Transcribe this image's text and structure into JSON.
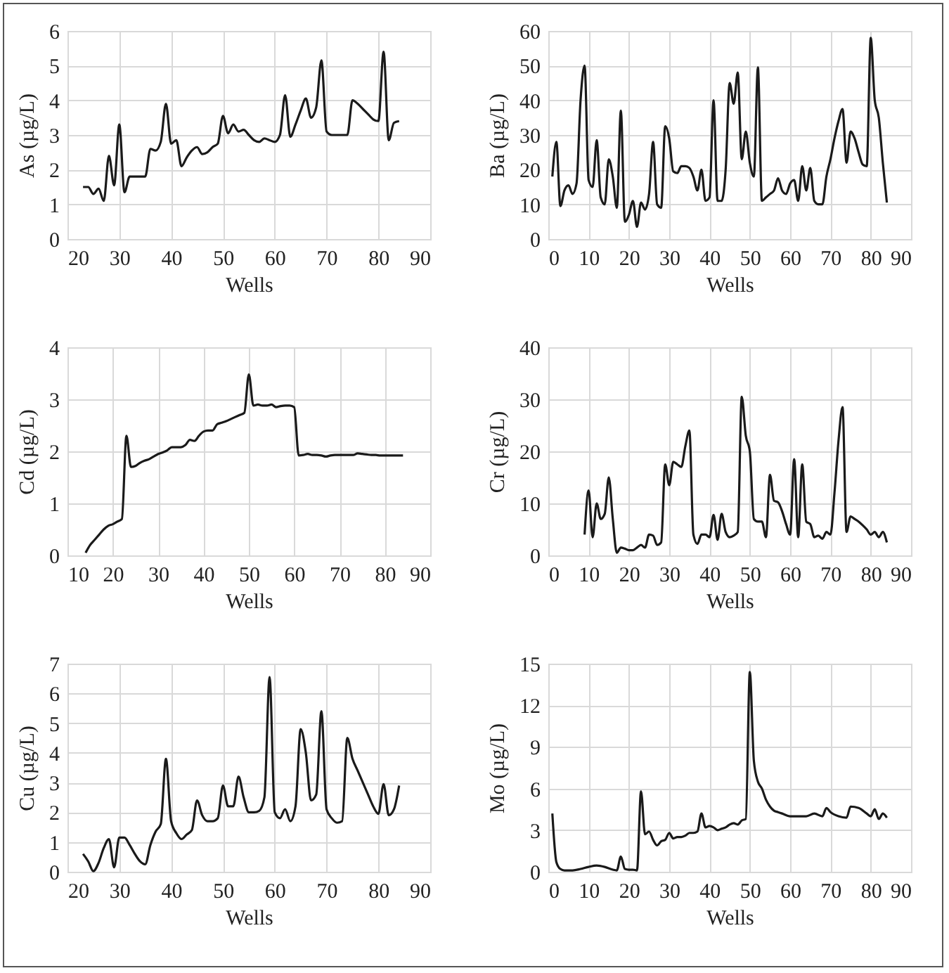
{
  "chart_data": [
    {
      "type": "line",
      "xlabel": "Wells",
      "ylabel": "As (µg/L)",
      "xlim": [
        20,
        90
      ],
      "xticks": [
        20,
        30,
        40,
        50,
        60,
        70,
        80,
        90
      ],
      "ylim": [
        0,
        6
      ],
      "yticks": [
        0,
        1,
        2,
        3,
        4,
        5,
        6
      ],
      "grid": true,
      "x": [
        23,
        24,
        25,
        26,
        27,
        28,
        29,
        30,
        31,
        32,
        33,
        34,
        35,
        36,
        37,
        38,
        39,
        40,
        41,
        42,
        43,
        44,
        45,
        46,
        47,
        48,
        49,
        50,
        51,
        52,
        53,
        54,
        55,
        56,
        57,
        58,
        59,
        60,
        61,
        62,
        63,
        64,
        65,
        66,
        67,
        68,
        69,
        70,
        71,
        72,
        73,
        74,
        75,
        76,
        77,
        78,
        79,
        80,
        81,
        82,
        83,
        84
      ],
      "series": [
        {
          "color": "#1a1a1a",
          "values": [
            1.5,
            1.5,
            1.3,
            1.45,
            1.1,
            2.4,
            1.55,
            3.3,
            1.35,
            1.8,
            1.8,
            1.8,
            1.8,
            2.6,
            2.55,
            2.8,
            3.9,
            2.75,
            2.85,
            2.1,
            2.35,
            2.55,
            2.65,
            2.45,
            2.5,
            2.65,
            2.75,
            3.55,
            3.05,
            3.3,
            3.1,
            3.15,
            3.0,
            2.85,
            2.8,
            2.9,
            2.85,
            2.8,
            3.0,
            4.15,
            2.95,
            3.3,
            3.7,
            4.05,
            3.5,
            3.8,
            5.15,
            3.1,
            3.0,
            3.0,
            3.0,
            3.0,
            4.0,
            3.9,
            3.75,
            3.6,
            3.45,
            3.4,
            5.4,
            2.85,
            3.35,
            3.4
          ]
        }
      ]
    },
    {
      "type": "line",
      "xlabel": "Wells",
      "ylabel": "Ba (µg/L)",
      "xlim": [
        0,
        90
      ],
      "xticks": [
        0,
        10,
        20,
        30,
        40,
        50,
        60,
        70,
        80,
        90
      ],
      "ylim": [
        0,
        60
      ],
      "yticks": [
        0,
        10,
        20,
        30,
        40,
        50,
        60
      ],
      "grid": true,
      "x": [
        1,
        2,
        3,
        4,
        5,
        6,
        7,
        8,
        9,
        10,
        11,
        12,
        13,
        14,
        15,
        16,
        17,
        18,
        19,
        20,
        21,
        22,
        23,
        24,
        25,
        26,
        27,
        28,
        29,
        30,
        31,
        32,
        33,
        34,
        35,
        36,
        37,
        38,
        39,
        40,
        41,
        42,
        43,
        44,
        45,
        46,
        47,
        48,
        49,
        50,
        51,
        52,
        53,
        54,
        55,
        56,
        57,
        58,
        59,
        60,
        61,
        62,
        63,
        64,
        65,
        66,
        67,
        68,
        69,
        70,
        71,
        72,
        73,
        74,
        75,
        76,
        77,
        78,
        79,
        80,
        81,
        82,
        83,
        84
      ],
      "series": [
        {
          "color": "#1a1a1a",
          "values": [
            18,
            28,
            9.5,
            14,
            15.5,
            13,
            16,
            40,
            50,
            17,
            15,
            28.5,
            12,
            10,
            23,
            18,
            9,
            37,
            5,
            7,
            11,
            3.5,
            10.5,
            8.5,
            13,
            28,
            10,
            9,
            32.5,
            29,
            19.5,
            19,
            21,
            21,
            20.5,
            18,
            14,
            20,
            11,
            12,
            40,
            11,
            11,
            20,
            45,
            39,
            48,
            23,
            31,
            22,
            18,
            49.5,
            11,
            12,
            13,
            14,
            17.5,
            14,
            13,
            16,
            17,
            11,
            21,
            14,
            20.5,
            11,
            10,
            10,
            18,
            23,
            29,
            34,
            37.5,
            22,
            31,
            29,
            25,
            21.5,
            21,
            58,
            40,
            35,
            22,
            10.5
          ]
        }
      ]
    },
    {
      "type": "line",
      "xlabel": "Wells",
      "ylabel": "Cd (µg/L)",
      "xlim": [
        10,
        90
      ],
      "xticks": [
        10,
        20,
        30,
        40,
        50,
        60,
        70,
        80,
        90
      ],
      "ylim": [
        0,
        4
      ],
      "yticks": [
        0,
        1,
        2,
        3,
        4
      ],
      "grid": true,
      "x": [
        14,
        15,
        16,
        17,
        18,
        19,
        20,
        21,
        22,
        23,
        24,
        25,
        26,
        27,
        28,
        29,
        30,
        31,
        32,
        33,
        34,
        35,
        36,
        37,
        38,
        39,
        40,
        41,
        42,
        43,
        44,
        45,
        46,
        47,
        48,
        49,
        50,
        51,
        52,
        53,
        54,
        55,
        56,
        57,
        58,
        59,
        60,
        61,
        62,
        63,
        64,
        65,
        66,
        67,
        68,
        69,
        70,
        71,
        72,
        73,
        74,
        75,
        76,
        77,
        78,
        79,
        80,
        81,
        82,
        83,
        84
      ],
      "series": [
        {
          "color": "#1a1a1a",
          "values": [
            0.05,
            0.2,
            0.3,
            0.4,
            0.5,
            0.57,
            0.6,
            0.65,
            0.7,
            2.3,
            1.7,
            1.72,
            1.78,
            1.82,
            1.85,
            1.9,
            1.95,
            1.98,
            2.02,
            2.08,
            2.08,
            2.08,
            2.12,
            2.22,
            2.2,
            2.3,
            2.38,
            2.4,
            2.4,
            2.52,
            2.55,
            2.58,
            2.62,
            2.66,
            2.7,
            2.74,
            3.48,
            2.88,
            2.9,
            2.88,
            2.88,
            2.9,
            2.85,
            2.87,
            2.88,
            2.88,
            2.85,
            1.92,
            1.93,
            1.95,
            1.93,
            1.93,
            1.92,
            1.9,
            1.92,
            1.93,
            1.93,
            1.93,
            1.93,
            1.93,
            1.96,
            1.95,
            1.94,
            1.93,
            1.93,
            1.92,
            1.92,
            1.92,
            1.92,
            1.92,
            1.92
          ]
        }
      ]
    },
    {
      "type": "line",
      "xlabel": "Wells",
      "ylabel": "Cr (µg/L)",
      "xlim": [
        0,
        90
      ],
      "xticks": [
        0,
        10,
        20,
        30,
        40,
        50,
        60,
        70,
        80,
        90
      ],
      "ylim": [
        0,
        40
      ],
      "yticks": [
        0,
        10,
        20,
        30,
        40
      ],
      "grid": true,
      "x": [
        9,
        10,
        11,
        12,
        13,
        14,
        15,
        16,
        17,
        18,
        19,
        20,
        21,
        22,
        23,
        24,
        25,
        26,
        27,
        28,
        29,
        30,
        31,
        32,
        33,
        34,
        35,
        36,
        37,
        38,
        39,
        40,
        41,
        42,
        43,
        44,
        45,
        46,
        47,
        48,
        49,
        50,
        51,
        52,
        53,
        54,
        55,
        56,
        57,
        58,
        59,
        60,
        61,
        62,
        63,
        64,
        65,
        66,
        67,
        68,
        69,
        70,
        71,
        72,
        73,
        74,
        75,
        76,
        77,
        78,
        79,
        80,
        81,
        82,
        83,
        84
      ],
      "series": [
        {
          "color": "#1a1a1a",
          "values": [
            4,
            12.5,
            3.5,
            10,
            7,
            8,
            15,
            7,
            0.5,
            1.5,
            1.3,
            1,
            1,
            1.5,
            2,
            1.5,
            4,
            3.8,
            2,
            2.5,
            17.5,
            13.5,
            18,
            17.5,
            17,
            21,
            24,
            4,
            2.2,
            4,
            4,
            3.5,
            7.8,
            3,
            8,
            4.5,
            3.5,
            3.8,
            4.5,
            30.5,
            23,
            20,
            7,
            6.5,
            6.5,
            3.5,
            15.5,
            10.5,
            10.2,
            8.5,
            6,
            4,
            18.5,
            3.5,
            17.5,
            6.5,
            6,
            3.5,
            3.8,
            3.2,
            4.5,
            4,
            12,
            22,
            28.5,
            4.5,
            7.5,
            7,
            6.5,
            5.8,
            5,
            4,
            4.5,
            3.5,
            4.5,
            2.5
          ]
        }
      ]
    },
    {
      "type": "line",
      "xlabel": "Wells",
      "ylabel": "Cu (µg/L)",
      "xlim": [
        20,
        90
      ],
      "xticks": [
        20,
        30,
        40,
        50,
        60,
        70,
        80,
        90
      ],
      "ylim": [
        0,
        7
      ],
      "yticks": [
        0,
        1,
        2,
        3,
        4,
        5,
        6,
        7
      ],
      "grid": true,
      "x": [
        23,
        24,
        25,
        26,
        27,
        28,
        29,
        30,
        31,
        32,
        33,
        34,
        35,
        36,
        37,
        38,
        39,
        40,
        41,
        42,
        43,
        44,
        45,
        46,
        47,
        48,
        49,
        50,
        51,
        52,
        53,
        54,
        55,
        56,
        57,
        58,
        59,
        60,
        61,
        62,
        63,
        64,
        65,
        66,
        67,
        68,
        69,
        70,
        71,
        72,
        73,
        74,
        75,
        76,
        77,
        78,
        79,
        80,
        81,
        82,
        83,
        84
      ],
      "series": [
        {
          "color": "#1a1a1a",
          "values": [
            0.6,
            0.35,
            0.02,
            0.3,
            0.8,
            1.1,
            0.15,
            1.15,
            1.15,
            0.9,
            0.6,
            0.35,
            0.25,
            0.9,
            1.35,
            1.6,
            3.8,
            1.7,
            1.3,
            1.1,
            1.25,
            1.4,
            2.4,
            1.9,
            1.7,
            1.7,
            1.8,
            2.9,
            2.2,
            2.2,
            3.2,
            2.5,
            2.0,
            2.0,
            2.05,
            2.5,
            6.55,
            2.0,
            1.8,
            2.1,
            1.7,
            2.2,
            4.8,
            4.0,
            2.4,
            2.6,
            5.4,
            2.1,
            1.8,
            1.65,
            1.7,
            4.5,
            3.8,
            3.4,
            3.0,
            2.6,
            2.2,
            1.95,
            2.95,
            1.9,
            2.1,
            2.9
          ]
        }
      ]
    },
    {
      "type": "line",
      "xlabel": "Wells",
      "ylabel": "Mo (µg/L)",
      "xlim": [
        0,
        90
      ],
      "xticks": [
        0,
        10,
        20,
        30,
        40,
        50,
        60,
        70,
        80,
        90
      ],
      "ylim": [
        0,
        15
      ],
      "yticks": [
        0,
        3,
        6,
        9,
        12,
        15
      ],
      "grid": true,
      "x": [
        1,
        2,
        3,
        4,
        6,
        8,
        10,
        12,
        14,
        16,
        17,
        18,
        19,
        20,
        21,
        22,
        23,
        24,
        25,
        26,
        27,
        28,
        29,
        30,
        31,
        32,
        33,
        34,
        35,
        36,
        37,
        38,
        39,
        40,
        41,
        42,
        43,
        44,
        45,
        46,
        47,
        48,
        49,
        50,
        51,
        52,
        53,
        54,
        55,
        56,
        57,
        58,
        60,
        62,
        64,
        66,
        68,
        69,
        70,
        72,
        74,
        75,
        77,
        79,
        80,
        81,
        82,
        83,
        84
      ],
      "series": [
        {
          "color": "#1a1a1a",
          "values": [
            4.2,
            0.7,
            0.2,
            0.1,
            0.1,
            0.2,
            0.35,
            0.45,
            0.35,
            0.15,
            0.1,
            1.1,
            0.2,
            0.15,
            0.15,
            0.1,
            5.8,
            2.7,
            2.9,
            2.3,
            1.9,
            2.2,
            2.3,
            2.8,
            2.4,
            2.5,
            2.5,
            2.6,
            2.8,
            2.8,
            2.9,
            4.2,
            3.2,
            3.3,
            3.2,
            3.0,
            3.1,
            3.2,
            3.4,
            3.5,
            3.4,
            3.7,
            3.8,
            14.4,
            8,
            6.5,
            6.0,
            5.2,
            4.7,
            4.4,
            4.3,
            4.2,
            4.0,
            4.0,
            4.0,
            4.2,
            4.0,
            4.6,
            4.3,
            4.0,
            3.9,
            4.7,
            4.6,
            4.2,
            4.0,
            4.5,
            3.8,
            4.2,
            3.9
          ]
        }
      ]
    }
  ]
}
